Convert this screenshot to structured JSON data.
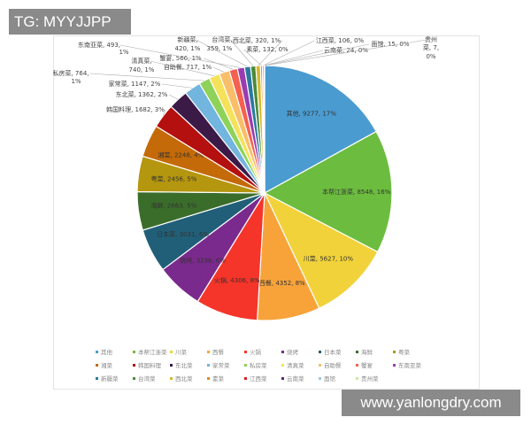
{
  "watermarks": {
    "top_left": "TG: MYYJJPP",
    "bottom_right": "www.yanlongdry.com"
  },
  "chart_data": {
    "type": "pie",
    "title": "",
    "start": "top",
    "direction": "clockwise",
    "legend_position": "bottom",
    "slices": [
      {
        "name": "其他",
        "value": 9277,
        "pct": "17%",
        "color": "#4a9bd0"
      },
      {
        "name": "本帮江浙菜",
        "value": 8548,
        "pct": "16%",
        "color": "#6cbd3f"
      },
      {
        "name": "川菜",
        "value": 5627,
        "pct": "10%",
        "color": "#f1d23a"
      },
      {
        "name": "西餐",
        "value": 4352,
        "pct": "8%",
        "color": "#f8a33a"
      },
      {
        "name": "火锅",
        "value": 4306,
        "pct": "8%",
        "color": "#f5352a"
      },
      {
        "name": "烧烤",
        "value": 3236,
        "pct": "6%",
        "color": "#7a2a8c"
      },
      {
        "name": "日本菜",
        "value": 3031,
        "pct": "6%",
        "color": "#215f78"
      },
      {
        "name": "海鲜",
        "value": 2663,
        "pct": "5%",
        "color": "#3a6d2a"
      },
      {
        "name": "粤菜",
        "value": 2456,
        "pct": "5%",
        "color": "#b5960f"
      },
      {
        "name": "湘菜",
        "value": 2248,
        "pct": "4%",
        "color": "#c46a08"
      },
      {
        "name": "韩国料理",
        "value": 1682,
        "pct": "3%",
        "color": "#b3100f"
      },
      {
        "name": "东北菜",
        "value": 1362,
        "pct": "2%",
        "color": "#3b1a48"
      },
      {
        "name": "家常菜",
        "value": 1147,
        "pct": "2%",
        "color": "#72b5de"
      },
      {
        "name": "私房菜",
        "value": 764,
        "pct": "1%",
        "color": "#8ed25a"
      },
      {
        "name": "清真菜",
        "value": 740,
        "pct": "1%",
        "color": "#f5e25a"
      },
      {
        "name": "自助餐",
        "value": 717,
        "pct": "1%",
        "color": "#f9be6a"
      },
      {
        "name": "蟹宴",
        "value": 566,
        "pct": "1%",
        "color": "#f6604e"
      },
      {
        "name": "东南亚菜",
        "value": 493,
        "pct": "1%",
        "color": "#9a3cb0"
      },
      {
        "name": "新疆菜",
        "value": 420,
        "pct": "1%",
        "color": "#2b78a0"
      },
      {
        "name": "台湾菜",
        "value": 359,
        "pct": "1%",
        "color": "#4a8a3a"
      },
      {
        "name": "西北菜",
        "value": 320,
        "pct": "1%",
        "color": "#d6b82a"
      },
      {
        "name": "素菜",
        "value": 132,
        "pct": "0%",
        "color": "#e08a2a"
      },
      {
        "name": "江西菜",
        "value": 106,
        "pct": "0%",
        "color": "#d82020"
      },
      {
        "name": "云南菜",
        "value": 24,
        "pct": "0%",
        "color": "#5a2a6a"
      },
      {
        "name": "面馆",
        "value": 15,
        "pct": "0%",
        "color": "#9cc8e0"
      },
      {
        "name": "贵州菜",
        "value": 7,
        "pct": "0%",
        "color": "#c8e8a0"
      }
    ]
  }
}
